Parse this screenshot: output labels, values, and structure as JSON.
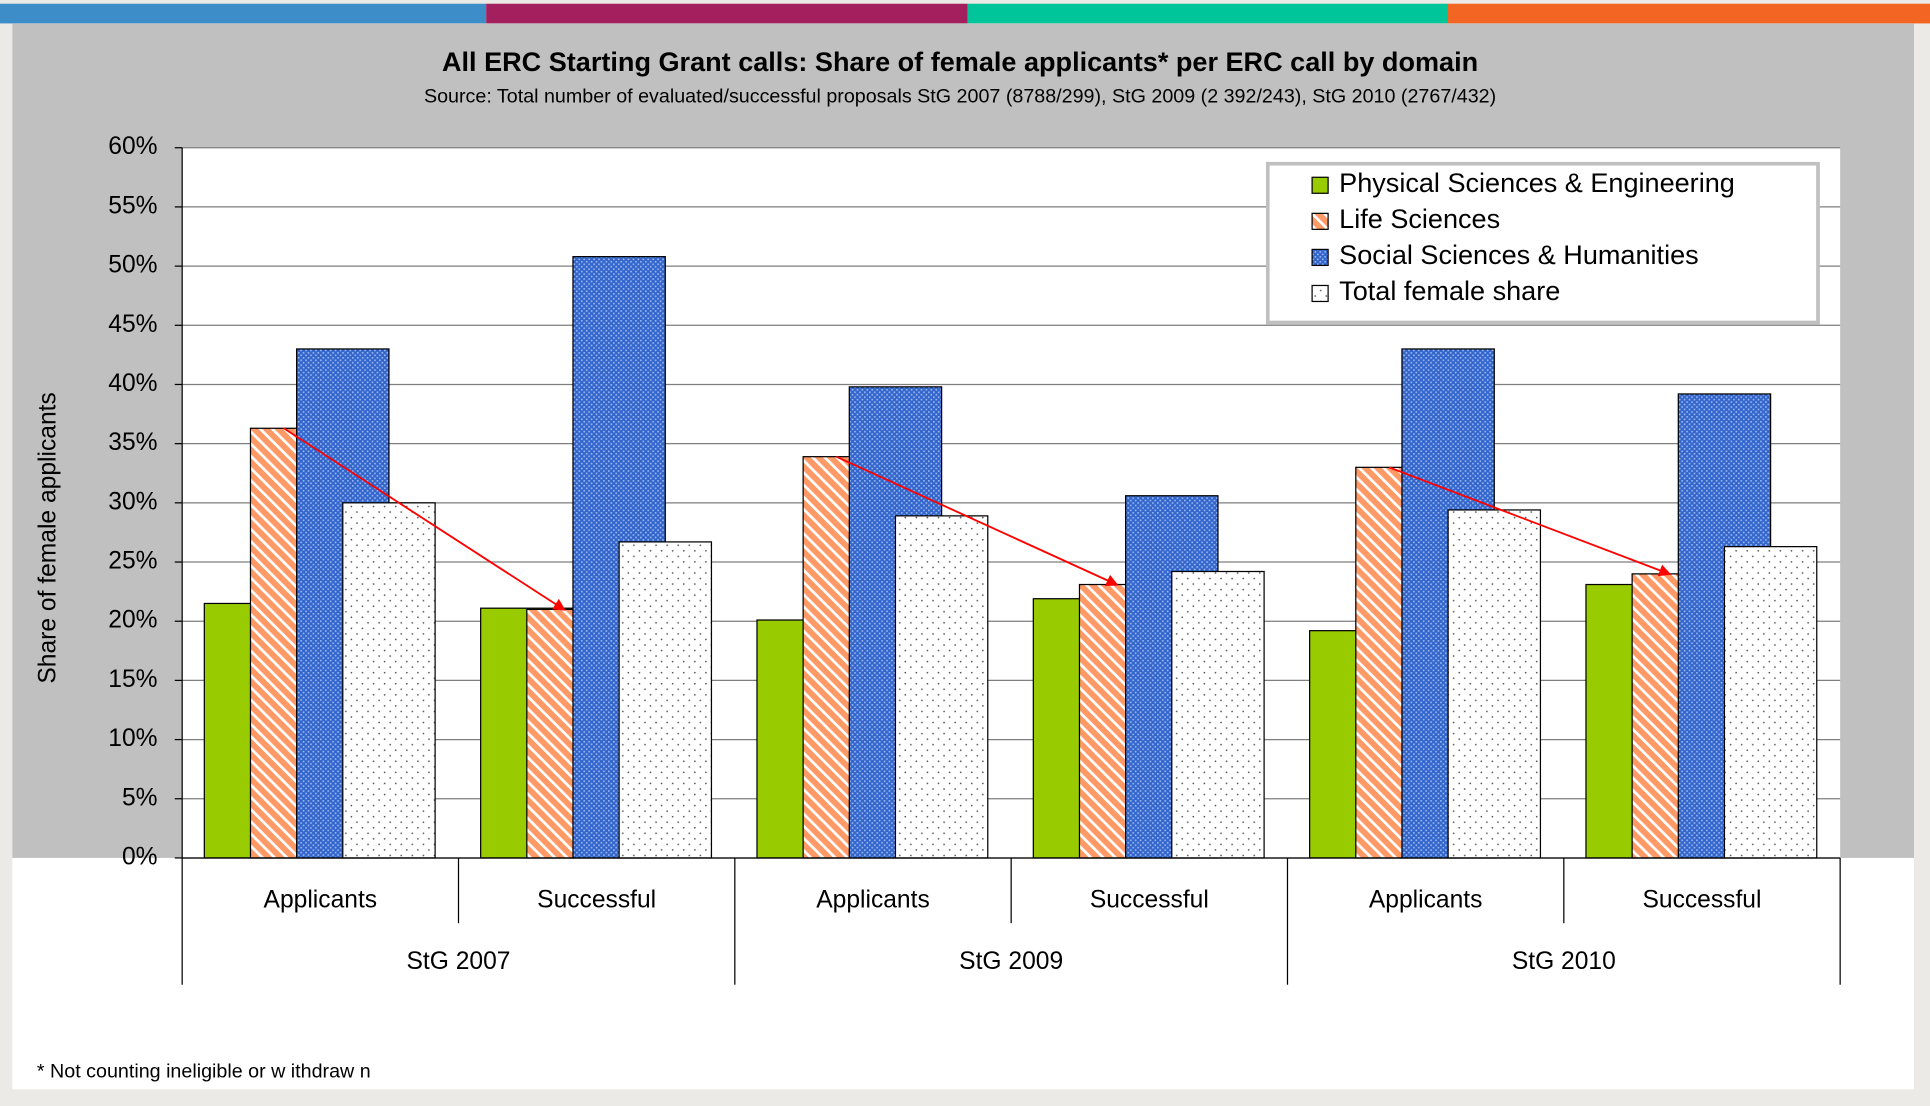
{
  "chart_data": {
    "type": "bar",
    "title": "All ERC Starting Grant calls: Share of female applicants* per ERC call by domain",
    "subtitle": "Source: Total number of evaluated/successful proposals StG 2007 (8788/299), StG 2009 (2 392/243), StG 2010 (2767/432)",
    "y_label": "Share of female applicants",
    "footnote": "* Not counting ineligible or w ithdraw n",
    "categories": [
      "Applicants",
      "Successful",
      "Applicants",
      "Successful",
      "Applicants",
      "Successful"
    ],
    "groups": [
      "StG 2007",
      "StG 2009",
      "StG 2010"
    ],
    "series": [
      {
        "name": "Physical Sciences & Engineering",
        "color": "#99cc00",
        "pattern": "solid",
        "values": [
          21.5,
          21.1,
          20.1,
          21.9,
          19.2,
          23.1
        ]
      },
      {
        "name": "Life Sciences",
        "color": "#ff9966",
        "pattern": "hatch",
        "values": [
          36.3,
          21,
          33.9,
          23.1,
          33,
          24
        ]
      },
      {
        "name": "Social Sciences & Humanities",
        "color": "#3366cc",
        "pattern": "checker",
        "values": [
          43,
          50.8,
          39.8,
          30.6,
          43,
          39.2
        ]
      },
      {
        "name": "Total female share",
        "color": "#ffffff",
        "pattern": "dots",
        "values": [
          30,
          26.7,
          28.9,
          24.2,
          29.4,
          26.3
        ]
      }
    ],
    "ylim": [
      0,
      60
    ],
    "yticks": [
      {
        "value": 0,
        "label": "0%"
      },
      {
        "value": 5,
        "label": "5%"
      },
      {
        "value": 10,
        "label": "10%"
      },
      {
        "value": 15,
        "label": "15%"
      },
      {
        "value": 20,
        "label": "20%"
      },
      {
        "value": 25,
        "label": "25%"
      },
      {
        "value": 30,
        "label": "30%"
      },
      {
        "value": 35,
        "label": "35%"
      },
      {
        "value": 40,
        "label": "40%"
      },
      {
        "value": 45,
        "label": "45%"
      },
      {
        "value": 50,
        "label": "50%"
      },
      {
        "value": 55,
        "label": "55%"
      },
      {
        "value": 60,
        "label": "60%"
      }
    ],
    "grid": true,
    "legend": "top-right"
  }
}
